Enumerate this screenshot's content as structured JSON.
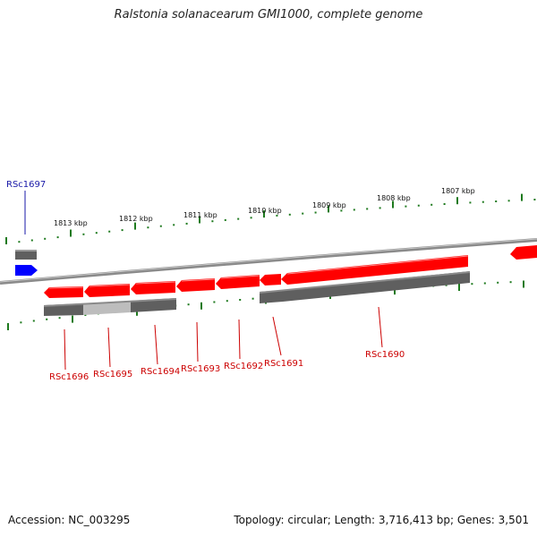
{
  "title": "Ralstonia solanacearum GMI1000, complete genome",
  "footer": {
    "accession": "Accession: NC_003295",
    "summary": "Topology: circular; Length: 3,716,413 bp; Genes: 3,501"
  },
  "colors": {
    "backbone": "#8a8a8a",
    "tick": "#1e7a1e",
    "gene_reverse": "#ff0000",
    "gene_forward": "#0000ff",
    "cds_bar": "#5f5f5f",
    "cds_bar_light": "#bdbdbd",
    "label_reverse": "#cc0000",
    "label_forward": "#1a1aa8"
  },
  "scale_labels": [
    "1813 kbp",
    "1812 kbp",
    "1811 kbp",
    "1810 kbp",
    "1809 kbp",
    "1808 kbp",
    "1807 kbp"
  ],
  "genes": [
    {
      "id": "RSc1697",
      "strand": "forward"
    },
    {
      "id": "RSc1696",
      "strand": "reverse"
    },
    {
      "id": "RSc1695",
      "strand": "reverse"
    },
    {
      "id": "RSc1694",
      "strand": "reverse"
    },
    {
      "id": "RSc1693",
      "strand": "reverse"
    },
    {
      "id": "RSc1692",
      "strand": "reverse"
    },
    {
      "id": "RSc1691",
      "strand": "reverse"
    },
    {
      "id": "RSc1690",
      "strand": "reverse"
    }
  ]
}
